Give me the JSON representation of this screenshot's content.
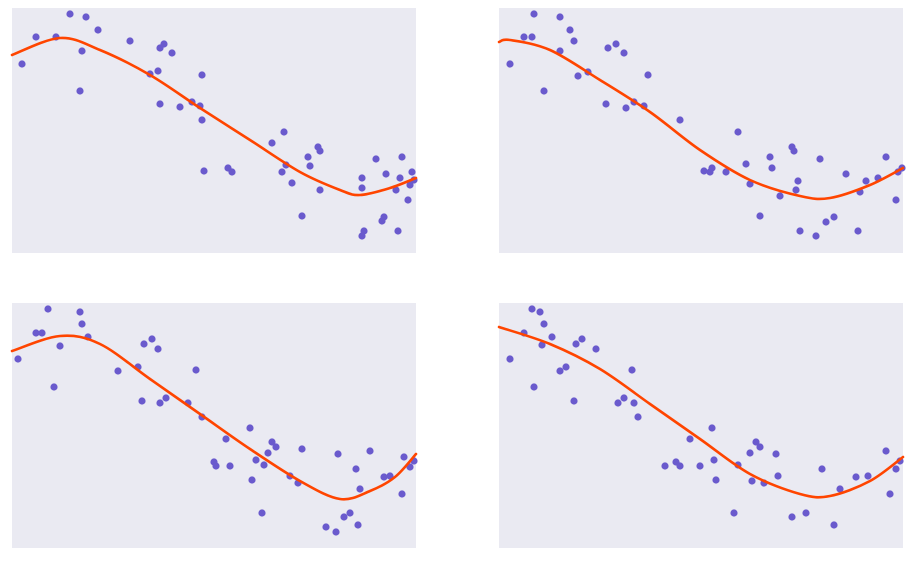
{
  "chart_data": [
    {
      "type": "scatter",
      "xlim": [
        0,
        404
      ],
      "ylim": [
        0,
        245
      ],
      "background": "#eaeaf2",
      "series": [
        {
          "color": "#6a5acd",
          "x": [
            10,
            24,
            44,
            58,
            74,
            86,
            68,
            70,
            118,
            148,
            152,
            160,
            138,
            146,
            148,
            168,
            180,
            188,
            190,
            190,
            192,
            220,
            216,
            260,
            272,
            274,
            270,
            280,
            290,
            296,
            298,
            306,
            308,
            308,
            350,
            350,
            352,
            350,
            364,
            370,
            372,
            374,
            384,
            386,
            388,
            390,
            396,
            400,
            402,
            398
          ],
          "values": [
            189,
            216,
            216,
            239,
            236,
            223,
            162,
            202,
            212,
            205,
            209,
            200,
            179,
            182,
            149,
            146,
            151,
            147,
            178,
            133,
            82,
            81,
            85,
            110,
            121,
            88,
            81,
            70,
            37,
            96,
            87,
            106,
            102,
            63,
            75,
            65,
            22,
            17,
            94,
            32,
            36,
            79,
            63,
            22,
            75,
            96,
            53,
            81,
            73,
            68
          ]
        }
      ],
      "fit": {
        "color": "#ff4500",
        "x": [
          0,
          48,
          88,
          138,
          188,
          238,
          288,
          328,
          348,
          378,
          404
        ],
        "values": [
          198,
          215,
          203,
          178,
          145,
          113,
          81,
          63,
          58,
          65,
          75
        ]
      }
    },
    {
      "type": "scatter",
      "xlim": [
        0,
        404
      ],
      "ylim": [
        0,
        245
      ],
      "background": "#eaeaf2",
      "series": [
        {
          "color": "#6a5acd",
          "x": [
            11,
            25,
            33,
            35,
            45,
            61,
            71,
            75,
            61,
            79,
            89,
            107,
            109,
            117,
            125,
            127,
            135,
            145,
            149,
            181,
            205,
            211,
            213,
            227,
            239,
            247,
            251,
            261,
            271,
            273,
            281,
            293,
            295,
            297,
            299,
            301,
            317,
            321,
            327,
            335,
            347,
            359,
            361,
            367,
            379,
            387,
            397,
            399,
            403
          ],
          "values": [
            189,
            216,
            216,
            239,
            162,
            236,
            223,
            212,
            202,
            177,
            181,
            149,
            205,
            209,
            200,
            145,
            151,
            147,
            178,
            133,
            82,
            81,
            85,
            81,
            121,
            89,
            69,
            37,
            96,
            85,
            57,
            106,
            102,
            63,
            72,
            22,
            17,
            94,
            31,
            36,
            79,
            22,
            61,
            72,
            75,
            96,
            53,
            81,
            85
          ]
        }
      ],
      "fit": {
        "color": "#ff4500",
        "x": [
          0,
          11,
          51,
          101,
          151,
          201,
          251,
          301,
          331,
          371,
          404
        ],
        "values": [
          211,
          213,
          203,
          173,
          141,
          103,
          73,
          57,
          55,
          68,
          85
        ]
      }
    },
    {
      "type": "scatter",
      "xlim": [
        0,
        404
      ],
      "ylim": [
        0,
        245
      ],
      "background": "#eaeaf2",
      "series": [
        {
          "color": "#6a5acd",
          "x": [
            6,
            24,
            30,
            36,
            42,
            48,
            68,
            70,
            76,
            106,
            126,
            130,
            132,
            140,
            146,
            148,
            154,
            176,
            184,
            190,
            202,
            204,
            214,
            218,
            238,
            240,
            244,
            250,
            252,
            256,
            260,
            264,
            278,
            286,
            290,
            314,
            324,
            326,
            332,
            338,
            344,
            346,
            348,
            358,
            372,
            378,
            390,
            392,
            398,
            402
          ],
          "values": [
            189,
            215,
            215,
            239,
            161,
            202,
            236,
            224,
            211,
            177,
            181,
            147,
            204,
            209,
            199,
            145,
            150,
            145,
            178,
            131,
            86,
            82,
            109,
            82,
            120,
            68,
            88,
            35,
            83,
            95,
            106,
            101,
            72,
            65,
            99,
            21,
            16,
            94,
            31,
            35,
            79,
            23,
            59,
            97,
            71,
            72,
            54,
            91,
            81,
            87
          ]
        }
      ],
      "fit": {
        "color": "#ff4500",
        "x": [
          0,
          48,
          88,
          138,
          188,
          238,
          288,
          328,
          358,
          383,
          404
        ],
        "values": [
          197,
          212,
          204,
          169,
          134,
          99,
          67,
          49,
          57,
          71,
          94
        ]
      }
    },
    {
      "type": "scatter",
      "xlim": [
        0,
        404
      ],
      "ylim": [
        0,
        245
      ],
      "background": "#eaeaf2",
      "series": [
        {
          "color": "#6a5acd",
          "x": [
            11,
            25,
            33,
            35,
            41,
            43,
            45,
            53,
            61,
            67,
            75,
            77,
            83,
            97,
            119,
            125,
            133,
            135,
            139,
            166,
            177,
            181,
            191,
            201,
            213,
            215,
            217,
            235,
            239,
            251,
            253,
            257,
            261,
            265,
            277,
            279,
            293,
            307,
            323,
            335,
            341,
            357,
            369,
            387,
            391,
            397,
            401
          ],
          "values": [
            189,
            215,
            239,
            161,
            236,
            203,
            224,
            211,
            177,
            181,
            147,
            204,
            209,
            199,
            145,
            150,
            178,
            145,
            131,
            82,
            86,
            82,
            109,
            82,
            120,
            88,
            68,
            35,
            83,
            95,
            67,
            106,
            101,
            65,
            94,
            72,
            31,
            35,
            79,
            23,
            59,
            71,
            72,
            97,
            54,
            79,
            87
          ]
        }
      ],
      "fit": {
        "color": "#ff4500",
        "x": [
          0,
          51,
          101,
          151,
          201,
          251,
          301,
          331,
          371,
          404
        ],
        "values": [
          221,
          204,
          179,
          144,
          109,
          74,
          54,
          52,
          67,
          91
        ]
      }
    }
  ]
}
